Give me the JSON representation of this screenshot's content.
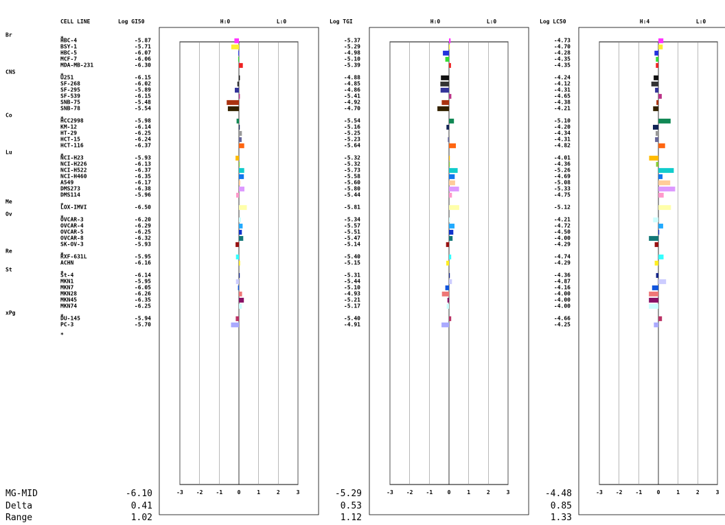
{
  "headers": {
    "cell_line": "CELL LINE",
    "log_gi50": "Log GI50",
    "log_tgi": "Log TGI",
    "log_lc50": "Log LC50",
    "panel_hl": [
      [
        "H:0",
        "L:0"
      ],
      [
        "H:0",
        "L:0"
      ],
      [
        "H:4",
        "L:0"
      ]
    ]
  },
  "summary_labels": [
    "MG-MID",
    "Delta",
    "Range"
  ],
  "summary": [
    [
      "-6.10",
      "0.41",
      "1.02"
    ],
    [
      "-5.29",
      "0.53",
      "1.12"
    ],
    [
      "-4.48",
      "0.85",
      "1.33"
    ]
  ],
  "chart_data": {
    "type": "bar",
    "title": "",
    "xlim": [
      -3,
      3
    ],
    "x_ticks": [
      "-3",
      "-2",
      "-1",
      "0",
      "1",
      "2",
      "3"
    ],
    "groups": [
      {
        "name": "Br",
        "rows": [
          {
            "cell": "HBC-4",
            "gi50": "-5.87",
            "tgi": "-5.37",
            "lc50": "-4.73",
            "color": "#ff33ff"
          },
          {
            "cell": "BSY-1",
            "gi50": "-5.71",
            "tgi": "-5.29",
            "lc50": "-4.70",
            "color": "#ffee33"
          },
          {
            "cell": "HBC-5",
            "gi50": "-6.07",
            "tgi": "-4.98",
            "lc50": "-4.28",
            "color": "#2233dd"
          },
          {
            "cell": "MCF-7",
            "gi50": "-6.06",
            "tgi": "-5.10",
            "lc50": "-4.35",
            "color": "#33dd33"
          },
          {
            "cell": "MDA-MB-231",
            "gi50": "-6.30",
            "tgi": "-5.39",
            "lc50": "-4.35",
            "color": "#ee2222"
          }
        ]
      },
      {
        "name": "CNS",
        "rows": [
          {
            "cell": "U251",
            "gi50": "-6.15",
            "tgi": "-4.88",
            "lc50": "-4.24",
            "color": "#111111"
          },
          {
            "cell": "SF-268",
            "gi50": "-6.02",
            "tgi": "-4.85",
            "lc50": "-4.12",
            "color": "#333333"
          },
          {
            "cell": "SF-295",
            "gi50": "-5.89",
            "tgi": "-4.86",
            "lc50": "-4.31",
            "color": "#333399"
          },
          {
            "cell": "SF-539",
            "gi50": "-6.15",
            "tgi": "-5.41",
            "lc50": "-4.65",
            "color": "#bb3388"
          },
          {
            "cell": "SNB-75",
            "gi50": "-5.48",
            "tgi": "-4.92",
            "lc50": "-4.38",
            "color": "#aa3311"
          },
          {
            "cell": "SNB-78",
            "gi50": "-5.54",
            "tgi": "-4.70",
            "lc50": "-4.21",
            "color": "#332200"
          }
        ]
      },
      {
        "name": "Co",
        "rows": [
          {
            "cell": "HCC2998",
            "gi50": "-5.98",
            "tgi": "-5.54",
            "lc50": "-5.10",
            "color": "#118855"
          },
          {
            "cell": "KM-12",
            "gi50": "-6.14",
            "tgi": "-5.16",
            "lc50": "-4.20",
            "color": "#112255"
          },
          {
            "cell": "HT-29",
            "gi50": "-6.25",
            "tgi": "-5.25",
            "lc50": "-4.34",
            "color": "#999999"
          },
          {
            "cell": "HCT-15",
            "gi50": "-6.24",
            "tgi": "-5.23",
            "lc50": "-4.31",
            "color": "#666699"
          },
          {
            "cell": "HCT-116",
            "gi50": "-6.37",
            "tgi": "-5.64",
            "lc50": "-4.82",
            "color": "#ff6611"
          }
        ]
      },
      {
        "name": "Lu",
        "rows": [
          {
            "cell": "NCI-H23",
            "gi50": "-5.93",
            "tgi": "-5.32",
            "lc50": "-4.01",
            "color": "#ffbb00"
          },
          {
            "cell": "NCI-H226",
            "gi50": "-6.13",
            "tgi": "-5.32",
            "lc50": "-4.36",
            "color": "#88cc33"
          },
          {
            "cell": "NCI-H522",
            "gi50": "-6.37",
            "tgi": "-5.73",
            "lc50": "-5.26",
            "color": "#11cccc"
          },
          {
            "cell": "NCI-H460",
            "gi50": "-6.35",
            "tgi": "-5.58",
            "lc50": "-4.69",
            "color": "#1177ee"
          },
          {
            "cell": "A549",
            "gi50": "-6.17",
            "tgi": "-5.60",
            "lc50": "-5.08",
            "color": "#ffcc99"
          },
          {
            "cell": "DMS273",
            "gi50": "-6.38",
            "tgi": "-5.80",
            "lc50": "-5.33",
            "color": "#dd99ff"
          },
          {
            "cell": "DMS114",
            "gi50": "-5.96",
            "tgi": "-5.44",
            "lc50": "-4.75",
            "color": "#ff99cc"
          }
        ]
      },
      {
        "name": "Me",
        "rows": [
          {
            "cell": "LOX-IMVI",
            "gi50": "-6.50",
            "tgi": "-5.81",
            "lc50": "-5.12",
            "color": "#ffffaa"
          }
        ]
      },
      {
        "name": "Ov",
        "rows": [
          {
            "cell": "OVCAR-3",
            "gi50": "-6.20",
            "tgi": "-5.34",
            "lc50": "-4.21",
            "color": "#ccffff"
          },
          {
            "cell": "OVCAR-4",
            "gi50": "-6.29",
            "tgi": "-5.57",
            "lc50": "-4.72",
            "color": "#22aaff"
          },
          {
            "cell": "OVCAR-5",
            "gi50": "-6.25",
            "tgi": "-5.51",
            "lc50": "-4.50",
            "color": "#1133cc"
          },
          {
            "cell": "OVCAR-8",
            "gi50": "-6.32",
            "tgi": "-5.47",
            "lc50": "-4.00",
            "color": "#117777"
          },
          {
            "cell": "SK-OV-3",
            "gi50": "-5.93",
            "tgi": "-5.14",
            "lc50": "-4.29",
            "color": "#991111"
          }
        ]
      },
      {
        "name": "Re",
        "rows": [
          {
            "cell": "RXF-631L",
            "gi50": "-5.95",
            "tgi": "-5.40",
            "lc50": "-4.74",
            "color": "#33ffff"
          },
          {
            "cell": "ACHN",
            "gi50": "-6.16",
            "tgi": "-5.15",
            "lc50": "-4.29",
            "color": "#ffee22"
          }
        ]
      },
      {
        "name": "St",
        "rows": [
          {
            "cell": "St-4",
            "gi50": "-6.14",
            "tgi": "-5.31",
            "lc50": "-4.36",
            "color": "#112288"
          },
          {
            "cell": "MKN1",
            "gi50": "-5.95",
            "tgi": "-5.44",
            "lc50": "-4.87",
            "color": "#ccccff"
          },
          {
            "cell": "MKN7",
            "gi50": "-6.05",
            "tgi": "-5.10",
            "lc50": "-4.16",
            "color": "#1155dd"
          },
          {
            "cell": "MKN28",
            "gi50": "-6.26",
            "tgi": "-4.93",
            "lc50": "-4.00",
            "color": "#ee7777"
          },
          {
            "cell": "MKN45",
            "gi50": "-6.35",
            "tgi": "-5.21",
            "lc50": "-4.00",
            "color": "#881166"
          },
          {
            "cell": "MKN74",
            "gi50": "-6.25",
            "tgi": "-5.17",
            "lc50": "-4.00",
            "color": "#ccffff"
          }
        ]
      },
      {
        "name": "xPg",
        "rows": [
          {
            "cell": "DU-145",
            "gi50": "-5.94",
            "tgi": "-5.40",
            "lc50": "-4.66",
            "color": "#bb3366"
          },
          {
            "cell": "PC-3",
            "gi50": "-5.70",
            "tgi": "-4.91",
            "lc50": "-4.25",
            "color": "#aaaaff"
          }
        ]
      }
    ]
  }
}
